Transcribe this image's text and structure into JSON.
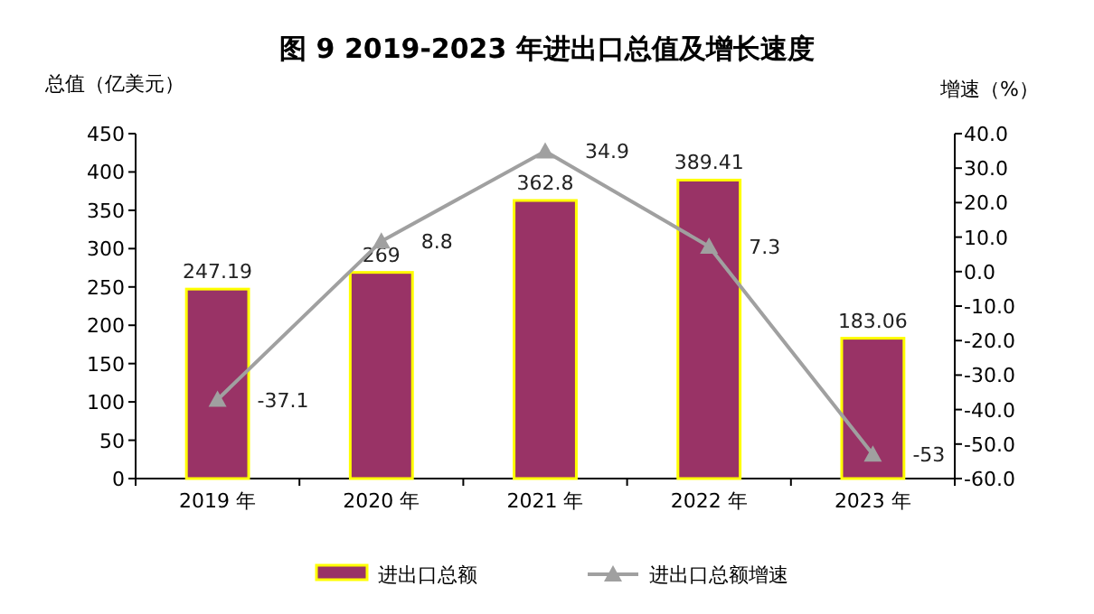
{
  "chart_data": {
    "type": "bar",
    "title": "图 9 2019-2023 年进出口总值及增长速度",
    "ylabel": "总值（亿美元）",
    "y2label": "增速（%）",
    "categories": [
      "2019 年",
      "2020 年",
      "2021 年",
      "2022 年",
      "2023 年"
    ],
    "series": [
      {
        "name": "进出口总额",
        "color": "#993366",
        "values": [
          247.19,
          269,
          362.8,
          389.41,
          183.06
        ]
      },
      {
        "name": "进出口总额增速",
        "type": "line",
        "axis": "y2",
        "color": "#a0a0a0",
        "marker": "triangle",
        "values": [
          -37.1,
          8.8,
          34.9,
          7.3,
          -53
        ]
      }
    ],
    "ylim": [
      0,
      450
    ],
    "yticks": [
      0,
      50,
      100,
      150,
      200,
      250,
      300,
      350,
      400,
      450
    ],
    "y2lim": [
      -60,
      40
    ],
    "y2ticks": [
      {
        "value": 40,
        "label": "40.0"
      },
      {
        "value": 30,
        "label": "30.0"
      },
      {
        "value": 20,
        "label": "20.0"
      },
      {
        "value": 10,
        "label": "10.0"
      },
      {
        "value": 0,
        "label": "0.0"
      },
      {
        "value": -10,
        "label": "-10.0"
      },
      {
        "value": -20,
        "label": "-20.0"
      },
      {
        "value": -30,
        "label": "-30.0"
      },
      {
        "value": -40,
        "label": "-40.0"
      },
      {
        "value": -50,
        "label": "-50.0"
      },
      {
        "value": -60,
        "label": "-60.0"
      }
    ],
    "data_labels": true,
    "grid": false,
    "legend": "bottom"
  }
}
